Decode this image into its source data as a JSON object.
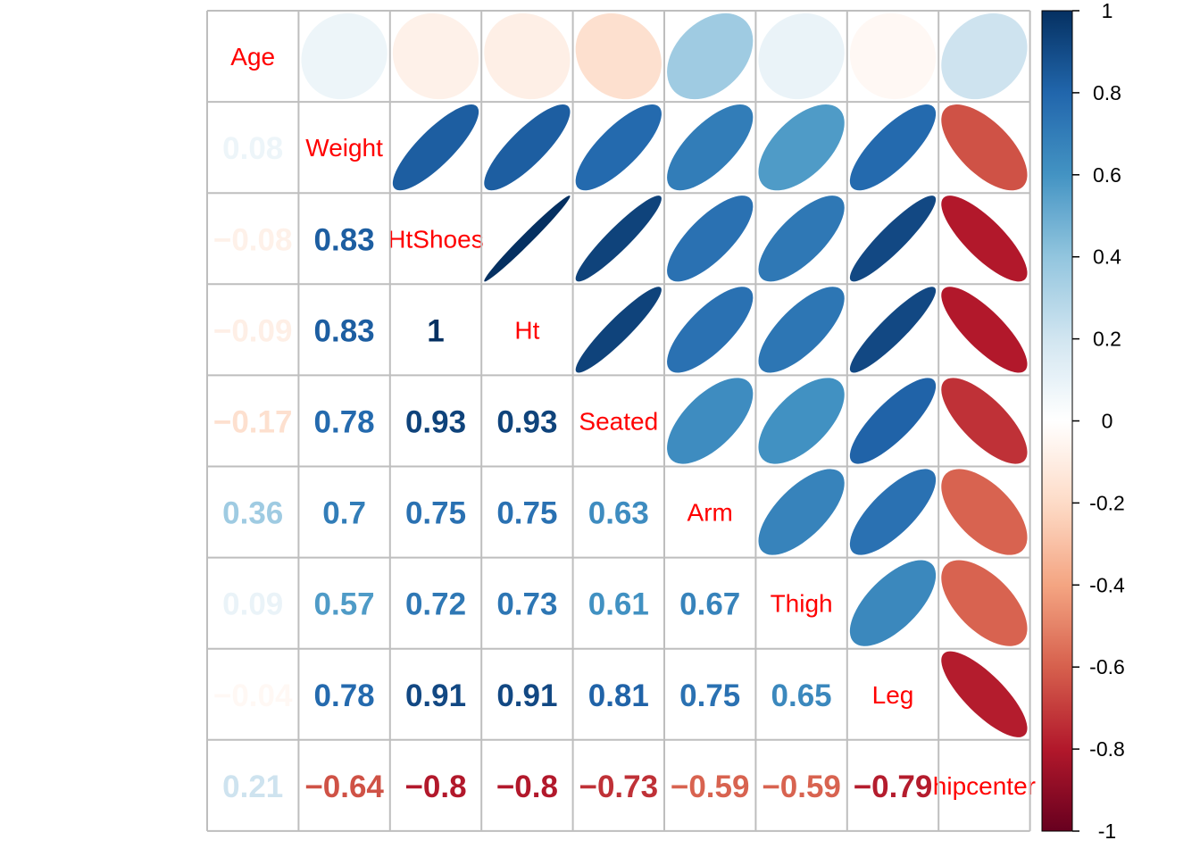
{
  "chart_data": {
    "type": "heatmap",
    "subtype": "correlation-matrix-mixed",
    "upper_method": "ellipse",
    "lower_method": "number",
    "diagonal": "variable-names",
    "variables": [
      "Age",
      "Weight",
      "HtShoes",
      "Ht",
      "Seated",
      "Arm",
      "Thigh",
      "Leg",
      "hipcenter"
    ],
    "matrix": [
      [
        1,
        0.08,
        -0.08,
        -0.09,
        -0.17,
        0.36,
        0.09,
        -0.04,
        0.21
      ],
      [
        0.08,
        1,
        0.83,
        0.83,
        0.78,
        0.7,
        0.57,
        0.78,
        -0.64
      ],
      [
        -0.08,
        0.83,
        1,
        1,
        0.93,
        0.75,
        0.72,
        0.91,
        -0.8
      ],
      [
        -0.09,
        0.83,
        1,
        1,
        0.93,
        0.75,
        0.73,
        0.91,
        -0.8
      ],
      [
        -0.17,
        0.78,
        0.93,
        0.93,
        1,
        0.63,
        0.61,
        0.81,
        -0.73
      ],
      [
        0.36,
        0.7,
        0.75,
        0.75,
        0.63,
        1,
        0.67,
        0.75,
        -0.59
      ],
      [
        0.09,
        0.57,
        0.72,
        0.73,
        0.61,
        0.67,
        1,
        0.65,
        -0.59
      ],
      [
        -0.04,
        0.78,
        0.91,
        0.91,
        0.81,
        0.75,
        0.65,
        1,
        -0.79
      ],
      [
        0.21,
        -0.64,
        -0.8,
        -0.8,
        -0.73,
        -0.59,
        -0.59,
        -0.79,
        1
      ]
    ],
    "colorbar": {
      "range": [
        -1,
        1
      ],
      "ticks": [
        "1",
        "0.8",
        "0.6",
        "0.4",
        "0.2",
        "0",
        "-0.2",
        "-0.4",
        "-0.6",
        "-0.8",
        "-1"
      ]
    },
    "colors": {
      "palette": [
        "#67001F",
        "#B2182B",
        "#D6604D",
        "#F4A582",
        "#FDDBC7",
        "#FFFFFF",
        "#D1E5F0",
        "#92C5DE",
        "#4393C3",
        "#2166AC",
        "#053061"
      ],
      "label_color": "#FF0000",
      "grid_color": "#BEBEBE"
    },
    "grid": true,
    "legend": "colorbar-right"
  }
}
